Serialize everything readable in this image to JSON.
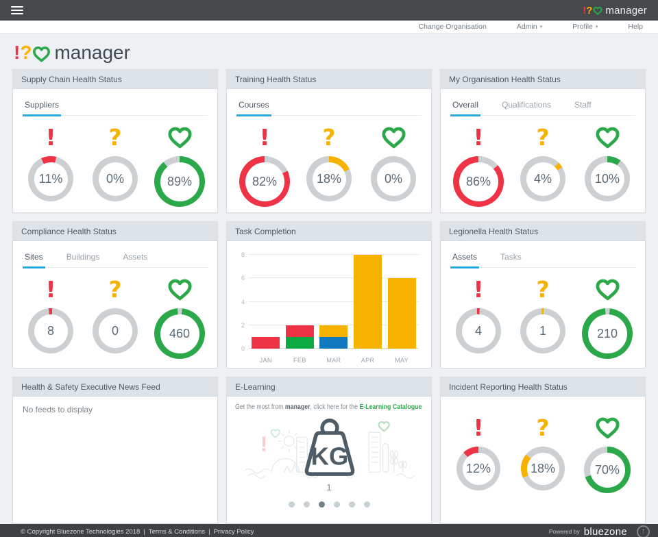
{
  "colors": {
    "red": "#ed3345",
    "amber": "#f7b200",
    "green": "#2ba84a",
    "green_bar": "#0caa41",
    "blue_bar": "#1379bf",
    "accent": "#29abe2",
    "ring": "#cdd0d2"
  },
  "topbar": {
    "bang": "!",
    "question": "?",
    "word": "manager"
  },
  "nav": {
    "change_org": "Change Organisation",
    "admin": "Admin",
    "profile": "Profile",
    "help": "Help"
  },
  "brand": {
    "bang": "!",
    "question": "?",
    "word": "manager"
  },
  "cards": {
    "supply_chain": {
      "title": "Supply Chain Health Status",
      "tabs": [
        {
          "label": "Suppliers",
          "active": true
        }
      ],
      "gauges": [
        {
          "icon": "exclamation",
          "color": "red",
          "value": "11%",
          "percent": 11,
          "from": -25,
          "size": 66
        },
        {
          "icon": "question",
          "color": "amber",
          "value": "0%",
          "percent": 0,
          "from": 0,
          "size": 66
        },
        {
          "icon": "heart",
          "color": "green",
          "value": "89%",
          "percent": 89,
          "from": 0,
          "size": 74
        }
      ]
    },
    "training": {
      "title": "Training Health Status",
      "tabs": [
        {
          "label": "Courses",
          "active": true
        }
      ],
      "gauges": [
        {
          "icon": "exclamation",
          "color": "red",
          "value": "82%",
          "percent": 82,
          "from": 65,
          "size": 74
        },
        {
          "icon": "question",
          "color": "amber",
          "value": "18%",
          "percent": 18,
          "from": 0,
          "size": 66
        },
        {
          "icon": "heart",
          "color": "green",
          "value": "0%",
          "percent": 0,
          "from": 0,
          "size": 66
        }
      ]
    },
    "my_organisation": {
      "title": "My Organisation Health Status",
      "tabs": [
        {
          "label": "Overall",
          "active": true
        },
        {
          "label": "Qualifications"
        },
        {
          "label": "Staff"
        }
      ],
      "gauges": [
        {
          "icon": "exclamation",
          "color": "red",
          "value": "86%",
          "percent": 86,
          "from": 50,
          "size": 74
        },
        {
          "icon": "question",
          "color": "amber",
          "value": "4%",
          "percent": 4,
          "from": 45,
          "size": 66
        },
        {
          "icon": "heart",
          "color": "green",
          "value": "10%",
          "percent": 10,
          "from": 0,
          "size": 66
        }
      ]
    },
    "compliance": {
      "title": "Compliance Health Status",
      "tabs": [
        {
          "label": "Sites",
          "active": true
        },
        {
          "label": "Buildings"
        },
        {
          "label": "Assets"
        }
      ],
      "gauges": [
        {
          "icon": "exclamation",
          "color": "red",
          "value": "8",
          "percent": 2.5,
          "from": -5,
          "size": 66
        },
        {
          "icon": "question",
          "color": "amber",
          "value": "0",
          "percent": 0,
          "from": 0,
          "size": 66
        },
        {
          "icon": "heart",
          "color": "green",
          "value": "460",
          "percent": 97,
          "from": 6,
          "size": 74
        }
      ]
    },
    "task_completion": {
      "title": "Task Completion"
    },
    "legionella": {
      "title": "Legionella Health Status",
      "tabs": [
        {
          "label": "Assets",
          "active": true
        },
        {
          "label": "Tasks"
        }
      ],
      "gauges": [
        {
          "icon": "exclamation",
          "color": "red",
          "value": "4",
          "percent": 2,
          "from": -4,
          "size": 66
        },
        {
          "icon": "question",
          "color": "amber",
          "value": "1",
          "percent": 1.5,
          "from": -3,
          "size": 66
        },
        {
          "icon": "heart",
          "color": "green",
          "value": "210",
          "percent": 97,
          "from": 6,
          "size": 74
        }
      ]
    },
    "news_feed": {
      "title": "Health & Safety Executive News Feed",
      "empty_message": "No feeds to display"
    },
    "elearning": {
      "title": "E-Learning",
      "promo_prefix": "Get the most from ",
      "promo_brand": "manager",
      "promo_middle": ", click here for the ",
      "promo_link": "E-Learning Catalogue",
      "slide_index": "1",
      "dots_total": 6,
      "dot_active": 2
    },
    "incident": {
      "title": "Incident Reporting Health Status",
      "gauges": [
        {
          "icon": "exclamation",
          "color": "red",
          "value": "12%",
          "percent": 12,
          "from": -43,
          "size": 64
        },
        {
          "icon": "question",
          "color": "amber",
          "value": "18%",
          "percent": 18,
          "from": -115,
          "size": 64
        },
        {
          "icon": "heart",
          "color": "green",
          "value": "70%",
          "percent": 70,
          "from": 0,
          "size": 68
        }
      ]
    }
  },
  "chart_data": {
    "type": "bar",
    "stacked": true,
    "title": "Task Completion",
    "categories": [
      "JAN",
      "FEB",
      "MAR",
      "APR",
      "MAY"
    ],
    "yticks": [
      0,
      2,
      4,
      6,
      8
    ],
    "ylim": [
      0,
      8
    ],
    "grid": true,
    "legend": false,
    "bars": [
      {
        "label": "JAN",
        "total": 1,
        "segments": [
          {
            "color": "red",
            "value": 1
          }
        ]
      },
      {
        "label": "FEB",
        "total": 2,
        "segments": [
          {
            "color": "green_bar",
            "value": 1
          },
          {
            "color": "red",
            "value": 1
          }
        ]
      },
      {
        "label": "MAR",
        "total": 2,
        "segments": [
          {
            "color": "blue_bar",
            "value": 1
          },
          {
            "color": "amber",
            "value": 1
          }
        ]
      },
      {
        "label": "APR",
        "total": 8,
        "segments": [
          {
            "color": "amber",
            "value": 8
          }
        ]
      },
      {
        "label": "MAY",
        "total": 6,
        "segments": [
          {
            "color": "amber",
            "value": 6
          }
        ]
      }
    ]
  },
  "footer": {
    "copyright": "© Copyright Bluezone Technologies 2018",
    "separator": "|",
    "terms": "Terms & Conditions",
    "privacy": "Privacy Policy",
    "powered_by": "Powered by",
    "brand": "bluezone",
    "scroll_top": "↑"
  }
}
